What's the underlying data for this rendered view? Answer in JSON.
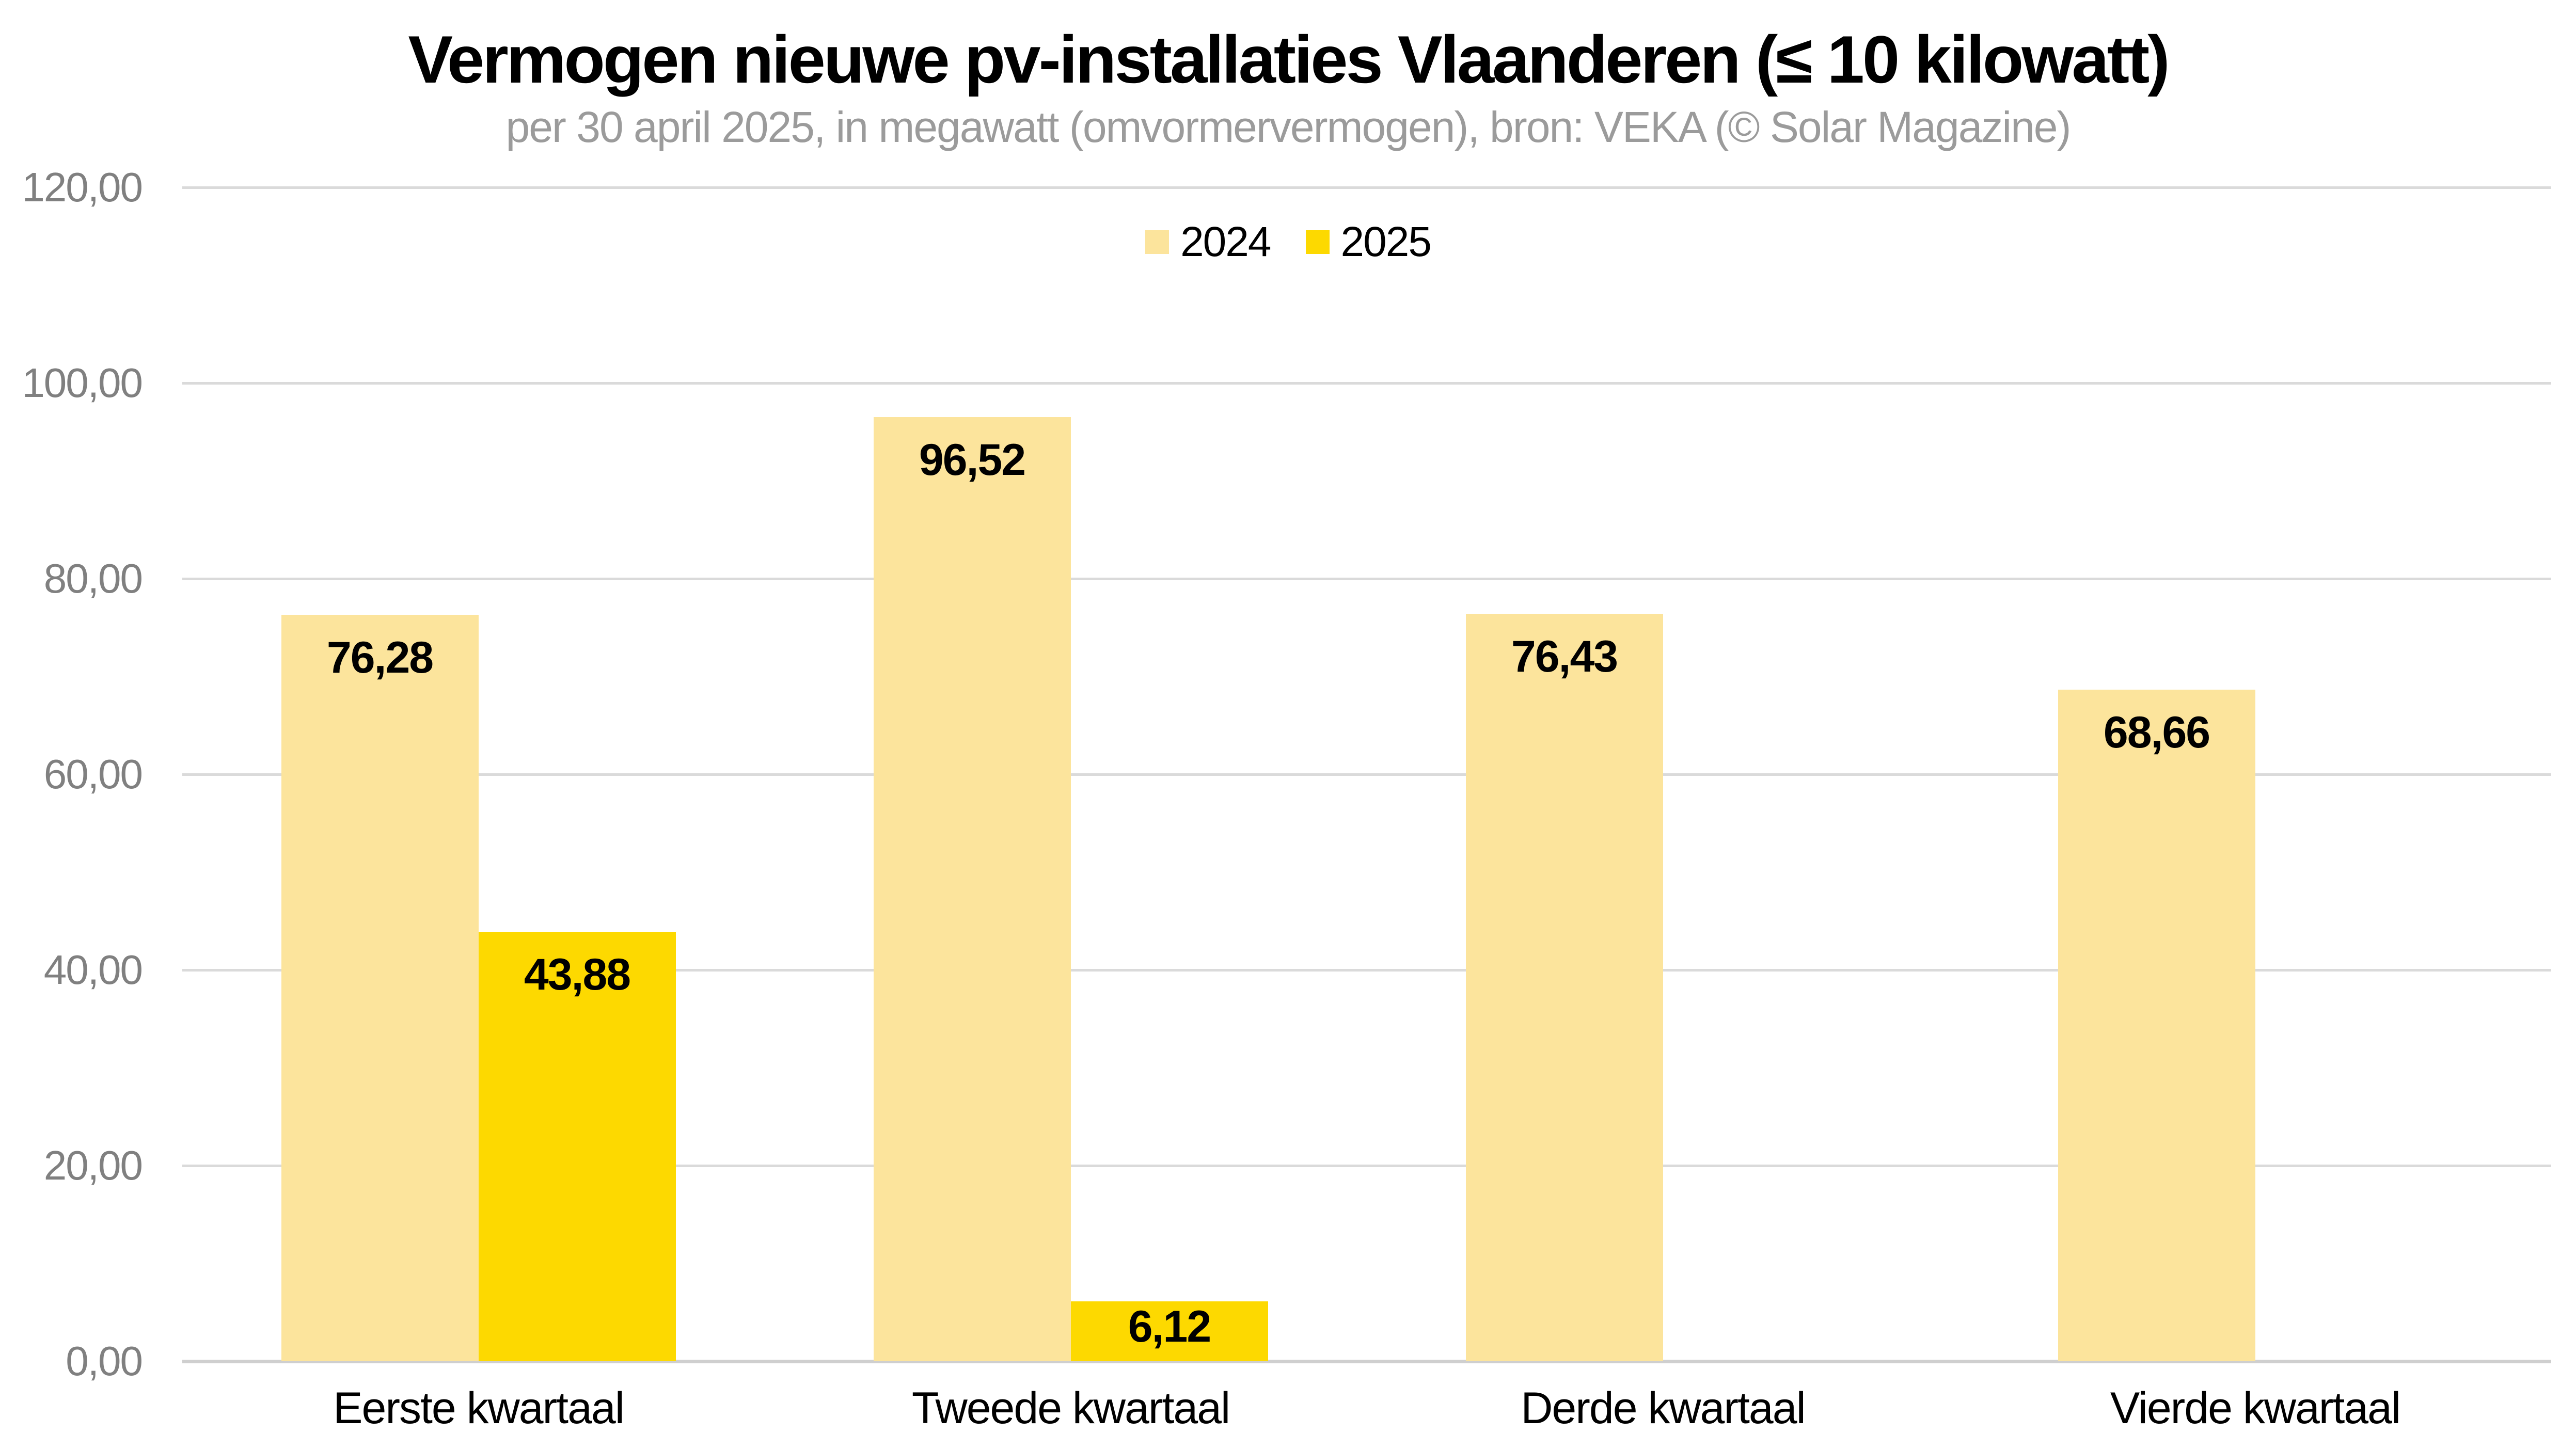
{
  "colors": {
    "background": "#ffffff",
    "title": "#000000",
    "subtitle": "#9b9b9b",
    "tick_label": "#808080",
    "gridline": "#dadada",
    "axis_line": "#cfcfcf",
    "value_label": "#000000",
    "category_label": "#000000",
    "series_2024": "#fce49c",
    "series_2025": "#fdd900"
  },
  "chart_data": {
    "type": "bar",
    "title": "Vermogen nieuwe pv-installaties Vlaanderen (≤ 10 kilowatt)",
    "subtitle": "per 30 april 2025, in megawatt (omvormervermogen), bron: VEKA (© Solar Magazine)",
    "categories": [
      "Eerste kwartaal",
      "Tweede kwartaal",
      "Derde kwartaal",
      "Vierde kwartaal"
    ],
    "series": [
      {
        "name": "2024",
        "color": "#fce49c",
        "values": [
          76.28,
          96.52,
          76.43,
          68.66
        ],
        "labels": [
          "76,28",
          "96,52",
          "76,43",
          "68,66"
        ]
      },
      {
        "name": "2025",
        "color": "#fdd900",
        "values": [
          43.88,
          6.12,
          null,
          null
        ],
        "labels": [
          "43,88",
          "6,12",
          null,
          null
        ]
      }
    ],
    "y_axis": {
      "min": 0,
      "max": 120,
      "step": 20,
      "tick_labels": [
        "0,00",
        "20,00",
        "40,00",
        "60,00",
        "80,00",
        "100,00",
        "120,00"
      ]
    },
    "grid": true,
    "legend_position": "top",
    "value_labels_shown": true
  }
}
